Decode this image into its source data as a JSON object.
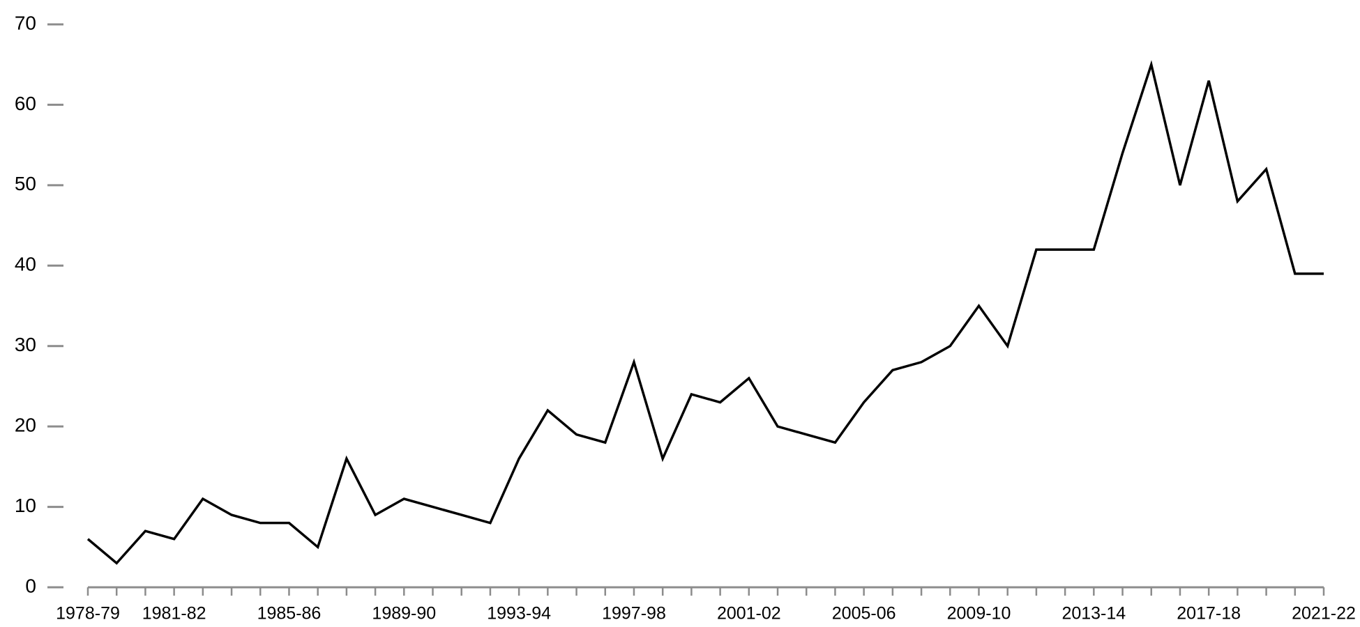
{
  "chart_data": {
    "type": "line",
    "categories": [
      "1978-79",
      null,
      null,
      "1981-82",
      null,
      null,
      null,
      "1985-86",
      null,
      null,
      null,
      "1989-90",
      null,
      null,
      null,
      "1993-94",
      null,
      null,
      null,
      "1997-98",
      null,
      null,
      null,
      "2001-02",
      null,
      null,
      null,
      "2005-06",
      null,
      null,
      null,
      "2009-10",
      null,
      null,
      null,
      "2013-14",
      null,
      null,
      null,
      "2017-18",
      null,
      null,
      null,
      "2021-22"
    ],
    "values": [
      6,
      3,
      7,
      6,
      11,
      9,
      8,
      8,
      5,
      16,
      9,
      11,
      10,
      9,
      8,
      16,
      22,
      19,
      18,
      28,
      16,
      24,
      23,
      26,
      20,
      19,
      18,
      23,
      27,
      28,
      30,
      35,
      30,
      42,
      42,
      42,
      54,
      65,
      50,
      63,
      48,
      52,
      39,
      39
    ],
    "color": "#000000",
    "ylim": [
      0,
      70
    ],
    "yticks": [
      0,
      10,
      20,
      30,
      40,
      50,
      60,
      70
    ],
    "grid": false
  }
}
